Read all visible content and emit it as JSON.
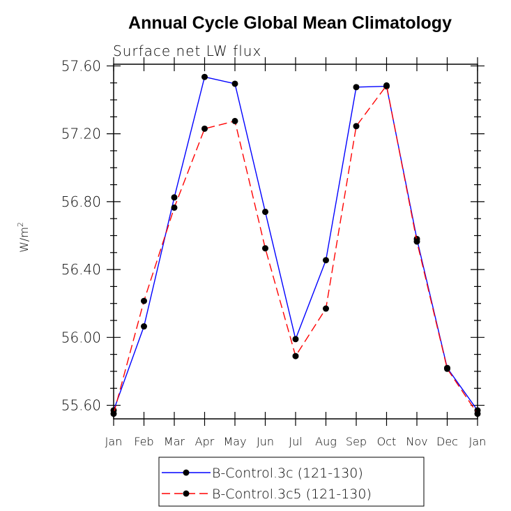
{
  "chart_data": {
    "type": "line",
    "title": "Annual Cycle Global Mean Climatology",
    "subtitle": "Surface net LW flux",
    "ylabel": "W/m",
    "ylabel_superscript": "2",
    "xlabel": "",
    "categories": [
      "Jan",
      "Feb",
      "Mar",
      "Apr",
      "May",
      "Jun",
      "Jul",
      "Aug",
      "Sep",
      "Oct",
      "Nov",
      "Dec",
      "Jan"
    ],
    "ylim": [
      55.52,
      57.61
    ],
    "yticks": [
      55.6,
      56.0,
      56.4,
      56.8,
      57.2,
      57.6
    ],
    "ytick_labels": [
      "55.60",
      "56.00",
      "56.40",
      "56.80",
      "57.20",
      "57.60"
    ],
    "grid": false,
    "legend_position": "bottom-center",
    "series": [
      {
        "name": "B-Control.3c (121-130)",
        "color": "#0000ff",
        "dash": "solid",
        "values": [
          55.57,
          56.065,
          56.825,
          57.535,
          57.495,
          56.74,
          55.99,
          56.455,
          57.475,
          57.48,
          56.58,
          55.82,
          55.57
        ]
      },
      {
        "name": "B-Control.3c5 (121-130)",
        "color": "#ff0000",
        "dash": "dashed",
        "values": [
          55.55,
          56.215,
          56.765,
          57.23,
          57.275,
          56.525,
          55.89,
          56.17,
          57.245,
          57.485,
          56.565,
          55.815,
          55.55
        ]
      }
    ]
  }
}
